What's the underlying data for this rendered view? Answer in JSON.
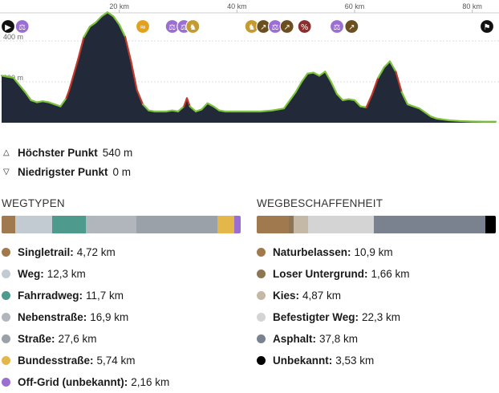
{
  "profile": {
    "km_ticks": [
      {
        "km": 20,
        "label": "20 km"
      },
      {
        "km": 40,
        "label": "40 km"
      },
      {
        "km": 60,
        "label": "60 km"
      },
      {
        "km": 80,
        "label": "80 km"
      }
    ],
    "elev_ticks": [
      {
        "m": 400,
        "label": "400 m"
      },
      {
        "m": 200,
        "label": "200 m"
      }
    ],
    "x_max_km": 84,
    "y_max_m": 600,
    "elevation_points": [
      [
        0,
        230
      ],
      [
        1,
        225
      ],
      [
        2,
        220
      ],
      [
        3,
        185
      ],
      [
        4,
        150
      ],
      [
        5,
        110
      ],
      [
        6,
        100
      ],
      [
        7,
        105
      ],
      [
        8,
        100
      ],
      [
        9,
        90
      ],
      [
        10,
        80
      ],
      [
        11,
        120
      ],
      [
        11.5,
        160
      ],
      [
        12,
        210
      ],
      [
        13,
        310
      ],
      [
        14,
        420
      ],
      [
        15,
        470
      ],
      [
        16,
        490
      ],
      [
        17,
        520
      ],
      [
        18,
        540
      ],
      [
        19,
        520
      ],
      [
        20,
        480
      ],
      [
        21,
        420
      ],
      [
        22,
        300
      ],
      [
        23,
        160
      ],
      [
        24,
        90
      ],
      [
        25,
        60
      ],
      [
        26,
        55
      ],
      [
        28,
        55
      ],
      [
        29,
        60
      ],
      [
        30,
        55
      ],
      [
        31,
        80
      ],
      [
        31.5,
        120
      ],
      [
        32,
        80
      ],
      [
        33,
        55
      ],
      [
        34,
        65
      ],
      [
        35,
        95
      ],
      [
        36,
        80
      ],
      [
        37,
        60
      ],
      [
        38,
        55
      ],
      [
        40,
        55
      ],
      [
        42,
        55
      ],
      [
        44,
        55
      ],
      [
        46,
        60
      ],
      [
        48,
        70
      ],
      [
        50,
        150
      ],
      [
        51,
        200
      ],
      [
        52,
        240
      ],
      [
        53,
        245
      ],
      [
        54,
        230
      ],
      [
        55,
        250
      ],
      [
        56,
        200
      ],
      [
        57,
        140
      ],
      [
        58,
        110
      ],
      [
        59,
        115
      ],
      [
        60,
        110
      ],
      [
        61,
        80
      ],
      [
        62,
        75
      ],
      [
        63,
        140
      ],
      [
        64,
        220
      ],
      [
        65,
        270
      ],
      [
        66,
        300
      ],
      [
        67,
        250
      ],
      [
        68,
        150
      ],
      [
        69,
        90
      ],
      [
        70,
        80
      ],
      [
        71,
        70
      ],
      [
        72,
        50
      ],
      [
        73,
        30
      ],
      [
        74,
        20
      ],
      [
        76,
        12
      ],
      [
        78,
        8
      ],
      [
        80,
        6
      ],
      [
        82,
        5
      ],
      [
        84,
        5
      ]
    ],
    "icons": [
      {
        "km": 0.8,
        "name": "start-flag-icon",
        "glyph": "▶",
        "color": "#111111"
      },
      {
        "km": 3.5,
        "name": "bike-rules-icon",
        "glyph": "⚖",
        "color": "#9b6fd1"
      },
      {
        "km": 24,
        "name": "water-icon",
        "glyph": "≈",
        "color": "#e2a21e"
      },
      {
        "km": 29,
        "name": "bike-rules-icon",
        "glyph": "⚖",
        "color": "#9b6fd1"
      },
      {
        "km": 31,
        "name": "bike-rules-icon",
        "glyph": "⚖",
        "color": "#9b6fd1"
      },
      {
        "km": 32.5,
        "name": "bike-push-icon",
        "glyph": "♞",
        "color": "#c59a2e"
      },
      {
        "km": 42.5,
        "name": "bike-push-icon",
        "glyph": "♞",
        "color": "#c59a2e"
      },
      {
        "km": 44.5,
        "name": "stairs-icon",
        "glyph": "↗",
        "color": "#6b4f20"
      },
      {
        "km": 46.5,
        "name": "bike-rules-icon",
        "glyph": "⚖",
        "color": "#9b6fd1"
      },
      {
        "km": 48.5,
        "name": "stairs-icon",
        "glyph": "↗",
        "color": "#6b4f20"
      },
      {
        "km": 51.5,
        "name": "steep-icon",
        "glyph": "%",
        "color": "#8b2e2e"
      },
      {
        "km": 57,
        "name": "bike-rules-icon",
        "glyph": "⚖",
        "color": "#9b6fd1"
      },
      {
        "km": 59.5,
        "name": "stairs-icon",
        "glyph": "↗",
        "color": "#6b4f20"
      },
      {
        "km": 82.5,
        "name": "finish-flag-icon",
        "glyph": "⚑",
        "color": "#111111"
      }
    ],
    "colors": {
      "fill": "#222a3a",
      "line": "#7cc23a",
      "steep": "#c0392b",
      "grid": "#dddddd"
    }
  },
  "stats": {
    "highest_label": "Höchster Punkt",
    "highest_value": "540 m",
    "lowest_label": "Niedrigster Punkt",
    "lowest_value": "0 m"
  },
  "wegtypen": {
    "title": "WEGTYPEN",
    "items": [
      {
        "label": "Singletrail:",
        "value": "4,72 km",
        "km": 4.72,
        "color": "#a07a4e"
      },
      {
        "label": "Weg:",
        "value": "12,3 km",
        "km": 12.3,
        "color": "#c3cbd2"
      },
      {
        "label": "Fahrradweg:",
        "value": "11,7 km",
        "km": 11.7,
        "color": "#4e9a8c"
      },
      {
        "label": "Nebenstraße:",
        "value": "16,9 km",
        "km": 16.9,
        "color": "#b0b6bc"
      },
      {
        "label": "Straße:",
        "value": "27,6 km",
        "km": 27.6,
        "color": "#9aa1a9"
      },
      {
        "label": "Bundesstraße:",
        "value": "5,74 km",
        "km": 5.74,
        "color": "#e3b74a"
      },
      {
        "label": "Off-Grid (unbekannt):",
        "value": "2,16 km",
        "km": 2.16,
        "color": "#9b6fd1"
      }
    ]
  },
  "wegbeschaffenheit": {
    "title": "WEGBESCHAFFENHEIT",
    "items": [
      {
        "label": "Naturbelassen:",
        "value": "10,9 km",
        "km": 10.9,
        "color": "#a07a4e"
      },
      {
        "label": "Loser Untergrund:",
        "value": "1,66 km",
        "km": 1.66,
        "color": "#8e7655"
      },
      {
        "label": "Kies:",
        "value": "4,87 km",
        "km": 4.87,
        "color": "#c4b8a6"
      },
      {
        "label": "Befestigter Weg:",
        "value": "22,3 km",
        "km": 22.3,
        "color": "#d4d4d4"
      },
      {
        "label": "Asphalt:",
        "value": "37,8 km",
        "km": 37.8,
        "color": "#7a8290"
      },
      {
        "label": "Unbekannt:",
        "value": "3,53 km",
        "km": 3.53,
        "color": "#000000"
      }
    ]
  }
}
